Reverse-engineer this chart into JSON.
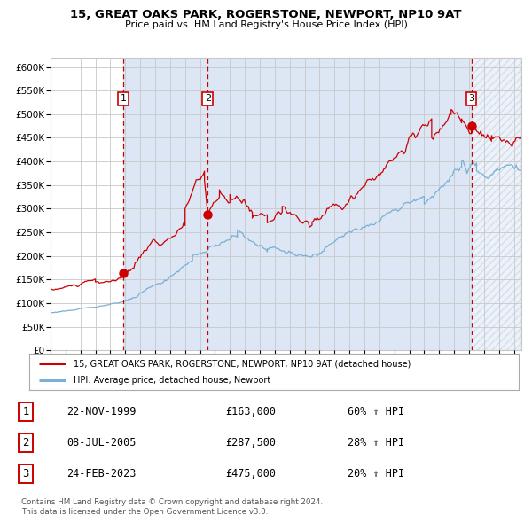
{
  "title": "15, GREAT OAKS PARK, ROGERSTONE, NEWPORT, NP10 9AT",
  "subtitle": "Price paid vs. HM Land Registry's House Price Index (HPI)",
  "hpi_label": "HPI: Average price, detached house, Newport",
  "property_label": "15, GREAT OAKS PARK, ROGERSTONE, NEWPORT, NP10 9AT (detached house)",
  "footer1": "Contains HM Land Registry data © Crown copyright and database right 2024.",
  "footer2": "This data is licensed under the Open Government Licence v3.0.",
  "sale_dates": [
    "22-NOV-1999",
    "08-JUL-2005",
    "24-FEB-2023"
  ],
  "sale_prices": [
    163000,
    287500,
    475000
  ],
  "sale_prices_str": [
    "£163,000",
    "£287,500",
    "£475,000"
  ],
  "sale_hpi_pct": [
    "60% ↑ HPI",
    "28% ↑ HPI",
    "20% ↑ HPI"
  ],
  "sale_years": [
    1999.89,
    2005.52,
    2023.15
  ],
  "ylim": [
    0,
    620000
  ],
  "xlim_start": 1995.0,
  "xlim_end": 2026.5,
  "background_color": "#ffffff",
  "plot_bg_color": "#ffffff",
  "grid_color": "#c8c8c8",
  "shade_color": "#dce6f5",
  "red_line_color": "#cc0000",
  "blue_line_color": "#7ab0d4",
  "dashed_vline_color": "#cc0000",
  "marker_color": "#cc0000",
  "label_box_color": "#cc0000"
}
